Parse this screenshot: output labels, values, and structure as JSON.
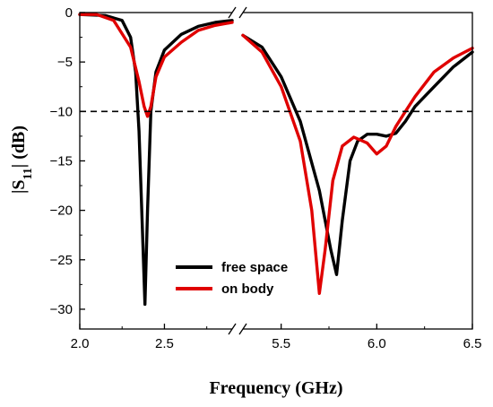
{
  "chart_data": {
    "type": "line",
    "xlabel": "Frequency (GHz)",
    "ylabel": {
      "main": "|S",
      "sub": "11",
      "tail": "| (dB)"
    },
    "x_axis": {
      "broken": true,
      "segments": [
        [
          2.0,
          2.9
        ],
        [
          5.3,
          6.5
        ]
      ],
      "ticks": [
        2.0,
        2.5,
        5.5,
        6.0,
        6.5
      ],
      "tick_labels": [
        "2.0",
        "2.5",
        "5.5",
        "6.0",
        "6.5"
      ]
    },
    "y_axis": {
      "range": [
        -32,
        0
      ],
      "ticks": [
        0,
        -5,
        -10,
        -15,
        -20,
        -25,
        -30
      ],
      "tick_labels": [
        "0",
        "-5",
        "-10",
        "-15",
        "-20",
        "-25",
        "-30"
      ]
    },
    "reference_line": {
      "y": -10,
      "style": "dashed",
      "color": "#000000"
    },
    "legend": {
      "placement": "bottom-center"
    },
    "series": [
      {
        "name": "free space",
        "color": "#000000",
        "segments": [
          [
            [
              2.0,
              -0.2
            ],
            [
              2.15,
              -0.3
            ],
            [
              2.25,
              -0.8
            ],
            [
              2.3,
              -2.5
            ],
            [
              2.33,
              -6
            ],
            [
              2.35,
              -12
            ],
            [
              2.37,
              -22
            ],
            [
              2.385,
              -29.5
            ],
            [
              2.4,
              -20
            ],
            [
              2.42,
              -10
            ],
            [
              2.45,
              -6
            ],
            [
              2.5,
              -3.8
            ],
            [
              2.6,
              -2.2
            ],
            [
              2.7,
              -1.4
            ],
            [
              2.8,
              -1.0
            ],
            [
              2.9,
              -0.8
            ]
          ],
          [
            [
              5.3,
              -2.3
            ],
            [
              5.4,
              -3.5
            ],
            [
              5.5,
              -6.5
            ],
            [
              5.6,
              -11
            ],
            [
              5.7,
              -18
            ],
            [
              5.76,
              -24
            ],
            [
              5.79,
              -26.5
            ],
            [
              5.82,
              -21
            ],
            [
              5.86,
              -15
            ],
            [
              5.9,
              -13
            ],
            [
              5.95,
              -12.3
            ],
            [
              6.0,
              -12.3
            ],
            [
              6.05,
              -12.5
            ],
            [
              6.1,
              -12.2
            ],
            [
              6.15,
              -11
            ],
            [
              6.2,
              -9.5
            ],
            [
              6.3,
              -7.5
            ],
            [
              6.4,
              -5.5
            ],
            [
              6.5,
              -4.0
            ]
          ]
        ]
      },
      {
        "name": "on body",
        "color": "#e00000",
        "segments": [
          [
            [
              2.0,
              -0.2
            ],
            [
              2.1,
              -0.2
            ],
            [
              2.2,
              -0.8
            ],
            [
              2.3,
              -3.5
            ],
            [
              2.35,
              -7
            ],
            [
              2.38,
              -9.5
            ],
            [
              2.4,
              -10.5
            ],
            [
              2.42,
              -9.5
            ],
            [
              2.45,
              -6.5
            ],
            [
              2.5,
              -4.5
            ],
            [
              2.6,
              -3.0
            ],
            [
              2.7,
              -1.8
            ],
            [
              2.8,
              -1.3
            ],
            [
              2.9,
              -1.0
            ]
          ],
          [
            [
              5.3,
              -2.3
            ],
            [
              5.4,
              -4.0
            ],
            [
              5.5,
              -7.5
            ],
            [
              5.6,
              -13
            ],
            [
              5.66,
              -20
            ],
            [
              5.7,
              -28.4
            ],
            [
              5.73,
              -24
            ],
            [
              5.77,
              -17
            ],
            [
              5.82,
              -13.5
            ],
            [
              5.88,
              -12.6
            ],
            [
              5.95,
              -13.2
            ],
            [
              6.0,
              -14.3
            ],
            [
              6.05,
              -13.5
            ],
            [
              6.1,
              -11.5
            ],
            [
              6.15,
              -10
            ],
            [
              6.2,
              -8.5
            ],
            [
              6.3,
              -6.0
            ],
            [
              6.4,
              -4.6
            ],
            [
              6.5,
              -3.6
            ]
          ]
        ]
      }
    ]
  }
}
